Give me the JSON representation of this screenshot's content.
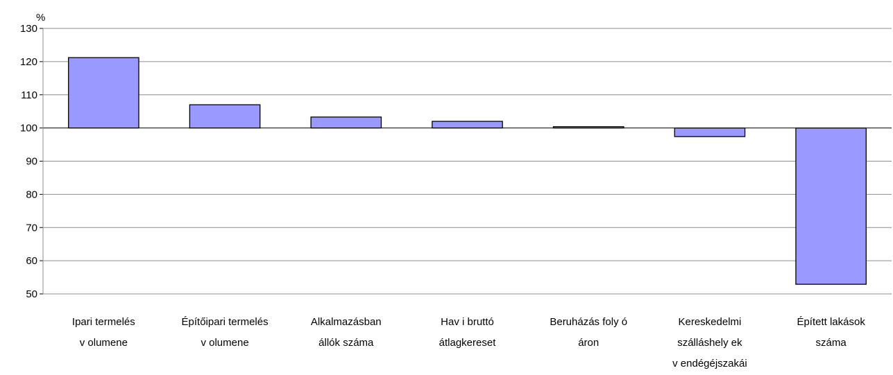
{
  "chart_data": {
    "type": "bar",
    "unit_label": "%",
    "baseline": 100,
    "ylim": [
      50,
      130
    ],
    "yticks": [
      50,
      60,
      70,
      80,
      90,
      100,
      110,
      120,
      130
    ],
    "grid": true,
    "bar_color": "#9999ff",
    "categories": [
      [
        "Ipari termelés",
        "v olumene"
      ],
      [
        "Építőipari termelés",
        "v olumene"
      ],
      [
        "Alkalmazásban",
        "állók száma"
      ],
      [
        "Hav i bruttó",
        "átlagkereset"
      ],
      [
        "Beruházás foly ó",
        "áron"
      ],
      [
        "Kereskedelmi",
        "szálláshely ek",
        "v endégéjszakái"
      ],
      [
        "Épített lakások",
        "száma"
      ]
    ],
    "values": [
      121.2,
      107.0,
      103.3,
      102.0,
      100.4,
      97.4,
      52.9
    ]
  }
}
